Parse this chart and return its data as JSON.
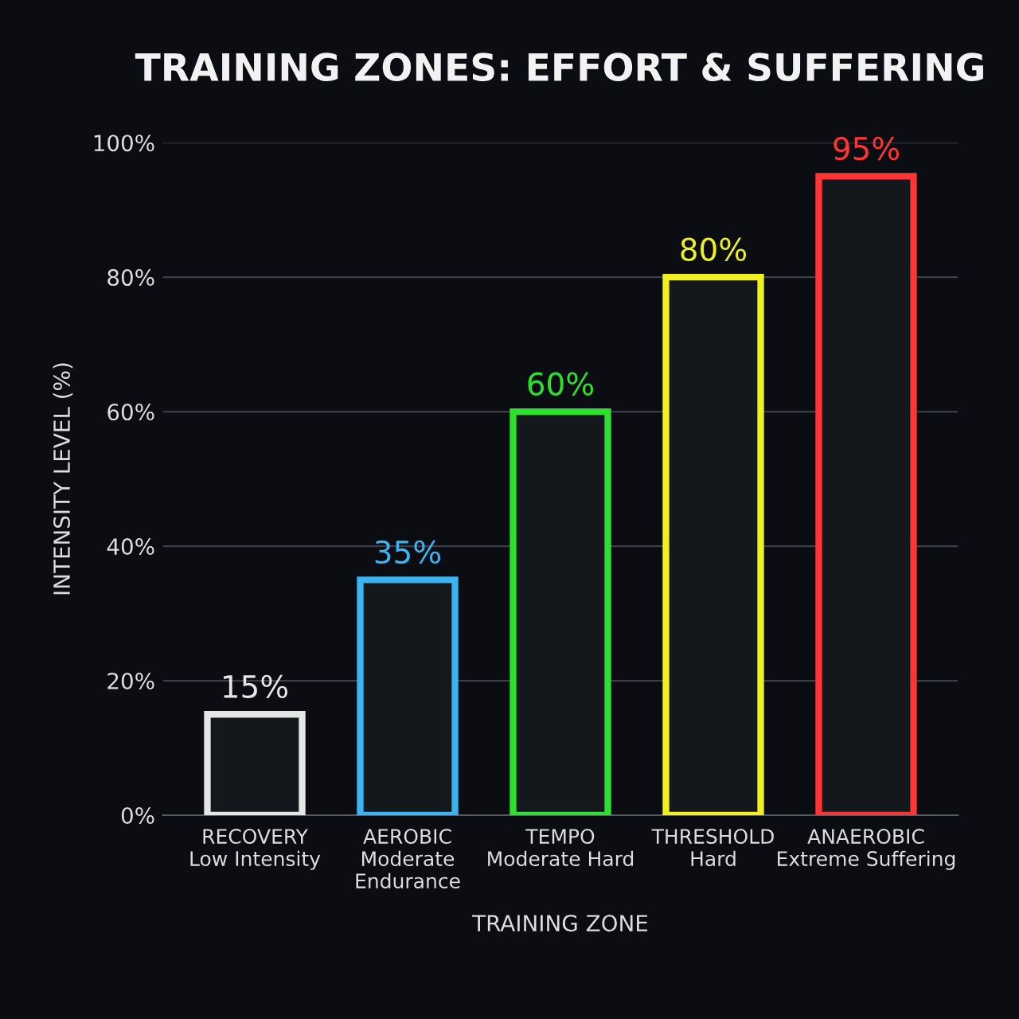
{
  "chart_data": {
    "type": "bar",
    "title": "TRAINING ZONES: EFFORT & SUFFERING",
    "xlabel": "TRAINING ZONE",
    "ylabel": "INTENSITY LEVEL (%)",
    "categories": [
      "RECOVERY\nLow Intensity",
      "AEROBIC\nModerate\nEndurance",
      "TEMPO\nModerate Hard",
      "THRESHOLD\nHard",
      "ANAEROBIC\nExtreme Suffering"
    ],
    "values": [
      15,
      35,
      60,
      80,
      95
    ],
    "colors": [
      "#e6e6e6",
      "#3ab4f2",
      "#2ee02e",
      "#f0f020",
      "#ff3535"
    ],
    "value_labels": [
      "15%",
      "35%",
      "60%",
      "80%",
      "95%"
    ],
    "ylim": [
      0,
      100
    ],
    "yticks": [
      {
        "value": 0,
        "label": "0%"
      },
      {
        "value": 20,
        "label": "20%"
      },
      {
        "value": 40,
        "label": "40%"
      },
      {
        "value": 60,
        "label": "60%"
      },
      {
        "value": 80,
        "label": "80%"
      },
      {
        "value": 100,
        "label": "100%"
      }
    ],
    "grid": "y"
  }
}
